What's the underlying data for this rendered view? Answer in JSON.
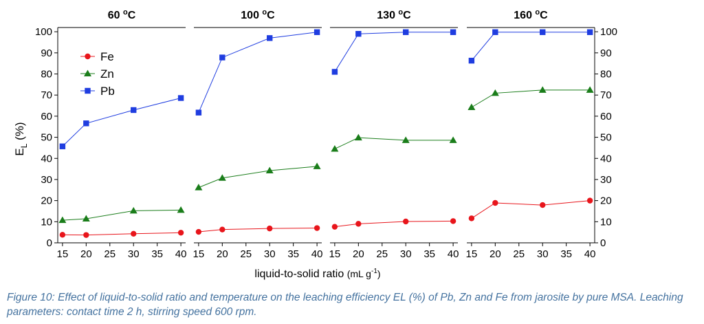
{
  "figure": {
    "ylabel_main": "E",
    "ylabel_sub": "L",
    "ylabel_suffix": " (%)",
    "xlabel_text": "liquid-to-solid ratio ",
    "xlabel_unit_open": "(mL g",
    "xlabel_unit_sup": "-1",
    "xlabel_unit_close": ")",
    "caption": "Figure 10: Effect of liquid-to-solid ratio and temperature on the leaching efficiency EL (%) of Pb, Zn and Fe from jarosite by pure MSA. Leaching parameters: contact time 2 h, stirring speed 600 rpm.",
    "legend": [
      {
        "label": "Fe",
        "color": "#e8151b",
        "marker": "circle"
      },
      {
        "label": "Zn",
        "color": "#1a7d1a",
        "marker": "triangle"
      },
      {
        "label": "Pb",
        "color": "#1f3de0",
        "marker": "square"
      }
    ]
  },
  "chart_data": [
    {
      "type": "line",
      "title": "60 °C",
      "x": [
        15,
        20,
        30,
        40
      ],
      "xlim": [
        14,
        41
      ],
      "ylim": [
        0,
        102
      ],
      "series": [
        {
          "name": "Fe",
          "values": [
            3.8,
            3.7,
            4.3,
            4.8
          ]
        },
        {
          "name": "Zn",
          "values": [
            10.7,
            11.4,
            15.2,
            15.5
          ]
        },
        {
          "name": "Pb",
          "values": [
            45.7,
            56.6,
            62.9,
            68.6
          ]
        }
      ]
    },
    {
      "type": "line",
      "title": "100 °C",
      "x": [
        15,
        20,
        30,
        40
      ],
      "xlim": [
        14,
        41
      ],
      "ylim": [
        0,
        102
      ],
      "series": [
        {
          "name": "Fe",
          "values": [
            5.2,
            6.3,
            6.8,
            7.0
          ]
        },
        {
          "name": "Zn",
          "values": [
            26.2,
            30.7,
            34.2,
            36.2
          ]
        },
        {
          "name": "Pb",
          "values": [
            61.7,
            87.8,
            97.0,
            99.8
          ]
        }
      ]
    },
    {
      "type": "line",
      "title": "130 °C",
      "x": [
        15,
        20,
        30,
        40
      ],
      "xlim": [
        14,
        41
      ],
      "ylim": [
        0,
        102
      ],
      "series": [
        {
          "name": "Fe",
          "values": [
            7.6,
            9.0,
            10.1,
            10.3
          ]
        },
        {
          "name": "Zn",
          "values": [
            44.5,
            49.8,
            48.6,
            48.6
          ]
        },
        {
          "name": "Pb",
          "values": [
            81.0,
            99.0,
            99.8,
            99.8
          ]
        }
      ]
    },
    {
      "type": "line",
      "title": "160 °C",
      "x": [
        15,
        20,
        30,
        40
      ],
      "xlim": [
        14,
        41
      ],
      "ylim": [
        0,
        102
      ],
      "series": [
        {
          "name": "Fe",
          "values": [
            11.6,
            18.9,
            17.9,
            20.0
          ]
        },
        {
          "name": "Zn",
          "values": [
            64.2,
            70.9,
            72.4,
            72.4
          ]
        },
        {
          "name": "Pb",
          "values": [
            86.3,
            99.8,
            99.8,
            99.8
          ]
        }
      ]
    }
  ],
  "axes": {
    "xticks": [
      15,
      20,
      25,
      30,
      35,
      40
    ],
    "yticks": [
      0,
      10,
      20,
      30,
      40,
      50,
      60,
      70,
      80,
      90,
      100
    ]
  }
}
